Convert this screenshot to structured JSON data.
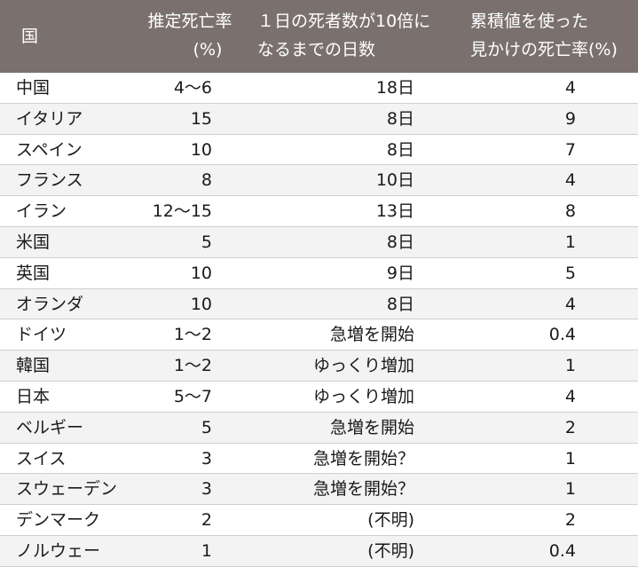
{
  "header": {
    "country": "国",
    "rate_line1": "推定死亡率",
    "rate_line2": "(%)",
    "days_line1": "１日の死者数が10倍に",
    "days_line2": "なるまでの日数",
    "apparent_line1": "累積値を使った",
    "apparent_line2": "見かけの死亡率(%)"
  },
  "rows": [
    {
      "country": "中国",
      "rate": "4〜6",
      "days": "18日",
      "apparent": "4"
    },
    {
      "country": "イタリア",
      "rate": "15",
      "days": "8日",
      "apparent": "9"
    },
    {
      "country": "スペイン",
      "rate": "10",
      "days": "8日",
      "apparent": "7"
    },
    {
      "country": "フランス",
      "rate": "8",
      "days": "10日",
      "apparent": "4"
    },
    {
      "country": "イラン",
      "rate": "12〜15",
      "days": "13日",
      "apparent": "8"
    },
    {
      "country": "米国",
      "rate": "5",
      "days": "8日",
      "apparent": "1"
    },
    {
      "country": "英国",
      "rate": "10",
      "days": "9日",
      "apparent": "5"
    },
    {
      "country": "オランダ",
      "rate": "10",
      "days": "8日",
      "apparent": "4"
    },
    {
      "country": "ドイツ",
      "rate": "1〜2",
      "days": "急増を開始",
      "apparent": "0.4"
    },
    {
      "country": "韓国",
      "rate": "1〜2",
      "days": "ゆっくり増加",
      "apparent": "1"
    },
    {
      "country": "日本",
      "rate": "5〜7",
      "days": "ゆっくり増加",
      "apparent": "4"
    },
    {
      "country": "ベルギー",
      "rate": "5",
      "days": "急増を開始",
      "apparent": "2"
    },
    {
      "country": "スイス",
      "rate": "3",
      "days": "急増を開始？",
      "apparent": "1"
    },
    {
      "country": "スウェーデン",
      "rate": "3",
      "days": "急増を開始？",
      "apparent": "1"
    },
    {
      "country": "デンマーク",
      "rate": "2",
      "days": "(不明)",
      "apparent": "2"
    },
    {
      "country": "ノルウェー",
      "rate": "1",
      "days": "(不明)",
      "apparent": "0.4"
    }
  ]
}
